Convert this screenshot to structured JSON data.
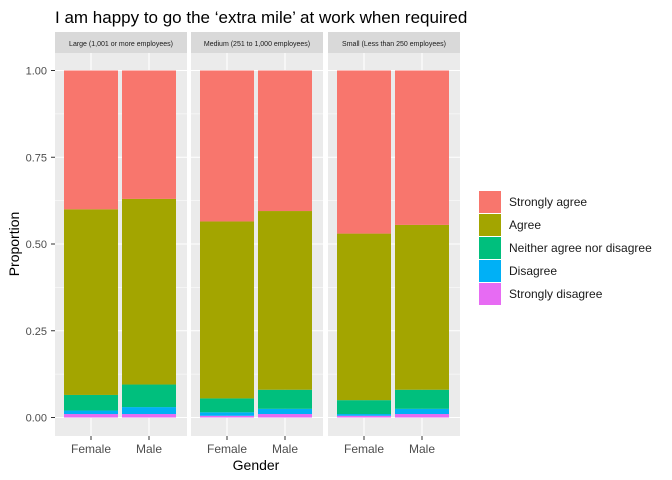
{
  "chart_data": {
    "type": "bar",
    "stacked": true,
    "title": "I am happy to go the ‘extra mile’ at work when required",
    "xlabel": "Gender",
    "ylabel": "Proportion",
    "ylim": [
      0,
      1
    ],
    "yticks": [
      "0.00",
      "0.25",
      "0.50",
      "0.75",
      "1.00"
    ],
    "ytick_values": [
      0,
      0.25,
      0.5,
      0.75,
      1
    ],
    "grid": true,
    "legend_position": "right",
    "categories": [
      "Female",
      "Male"
    ],
    "series_order_bottom_to_top": [
      "Strongly disagree",
      "Disagree",
      "Neither agree nor disagree",
      "Agree",
      "Strongly agree"
    ],
    "legend_order": [
      "Strongly agree",
      "Agree",
      "Neither agree nor disagree",
      "Disagree",
      "Strongly disagree"
    ],
    "colors": {
      "Strongly agree": "#F8766D",
      "Agree": "#A3A500",
      "Neither agree nor disagree": "#00BF7D",
      "Disagree": "#00B0F6",
      "Strongly disagree": "#E76BF3"
    },
    "panels": [
      {
        "label": "Large (1,001 or more employees)",
        "bars": [
          {
            "category": "Female",
            "values": {
              "Strongly disagree": 0.01,
              "Disagree": 0.01,
              "Neither agree nor disagree": 0.045,
              "Agree": 0.535,
              "Strongly agree": 0.4
            }
          },
          {
            "category": "Male",
            "values": {
              "Strongly disagree": 0.01,
              "Disagree": 0.02,
              "Neither agree nor disagree": 0.065,
              "Agree": 0.535,
              "Strongly agree": 0.37
            }
          }
        ]
      },
      {
        "label": "Medium (251 to 1,000 employees)",
        "bars": [
          {
            "category": "Female",
            "values": {
              "Strongly disagree": 0.005,
              "Disagree": 0.01,
              "Neither agree nor disagree": 0.04,
              "Agree": 0.51,
              "Strongly agree": 0.435
            }
          },
          {
            "category": "Male",
            "values": {
              "Strongly disagree": 0.01,
              "Disagree": 0.015,
              "Neither agree nor disagree": 0.055,
              "Agree": 0.515,
              "Strongly agree": 0.405
            }
          }
        ]
      },
      {
        "label": "Small (Less than 250 employees)",
        "bars": [
          {
            "category": "Female",
            "values": {
              "Strongly disagree": 0.005,
              "Disagree": 0.005,
              "Neither agree nor disagree": 0.04,
              "Agree": 0.48,
              "Strongly agree": 0.47
            }
          },
          {
            "category": "Male",
            "values": {
              "Strongly disagree": 0.01,
              "Disagree": 0.015,
              "Neither agree nor disagree": 0.055,
              "Agree": 0.475,
              "Strongly agree": 0.445
            }
          }
        ]
      }
    ]
  }
}
